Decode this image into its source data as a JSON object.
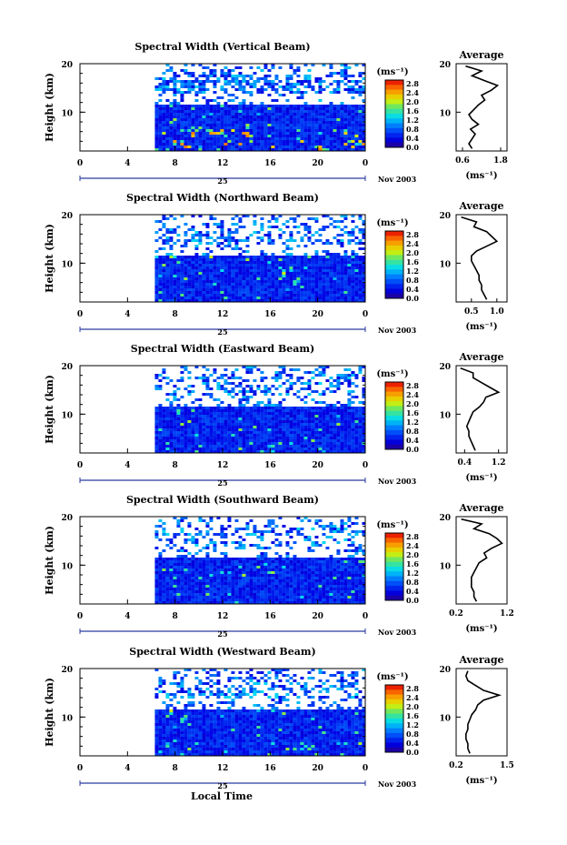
{
  "chart_data": {
    "type": "heatmap",
    "x_label": "Local Time",
    "y_label": "Height (km)",
    "date_label": "Nov 2003",
    "day_label": "25",
    "x_ticks": [
      "0",
      "4",
      "8",
      "12",
      "16",
      "20",
      "0"
    ],
    "y_ticks": [
      "20",
      "10"
    ],
    "xlim": [
      0,
      24
    ],
    "ylim": [
      2,
      20
    ],
    "data_start_hour": 6.3,
    "colorbar": {
      "unit": "(ms⁻¹)",
      "ticks": [
        "2.8",
        "2.4",
        "2.0",
        "1.6",
        "1.2",
        "0.8",
        "0.4",
        "0.0"
      ],
      "range": [
        0.0,
        2.8
      ]
    },
    "panels": [
      {
        "title": "Spectral Width (Vertical Beam)",
        "profile_title": "Average",
        "profile_xlabel": "(ms⁻¹)",
        "profile_xticks": [
          "0.6",
          "1.8"
        ],
        "profile_xlim": [
          0.4,
          2.0
        ],
        "profile": [
          [
            2.5,
            0.9
          ],
          [
            3.5,
            0.8
          ],
          [
            4.5,
            0.9
          ],
          [
            5.5,
            1.0
          ],
          [
            6.5,
            0.85
          ],
          [
            7.5,
            1.1
          ],
          [
            8.5,
            0.9
          ],
          [
            9.5,
            0.8
          ],
          [
            10.5,
            0.95
          ],
          [
            11.5,
            1.1
          ],
          [
            12.5,
            1.3
          ],
          [
            13.5,
            1.2
          ],
          [
            14.5,
            1.5
          ],
          [
            15.5,
            1.7
          ],
          [
            16.5,
            1.3
          ],
          [
            17.5,
            0.9
          ],
          [
            18.5,
            1.2
          ],
          [
            19.5,
            0.7
          ]
        ]
      },
      {
        "title": "Spectral Width (Northward Beam)",
        "profile_title": "Average",
        "profile_xlabel": "(ms⁻¹)",
        "profile_xticks": [
          "0.5",
          "1.0"
        ],
        "profile_xlim": [
          0.2,
          1.2
        ],
        "profile": [
          [
            2.5,
            0.8
          ],
          [
            3.5,
            0.75
          ],
          [
            4.5,
            0.7
          ],
          [
            5.5,
            0.7
          ],
          [
            6.5,
            0.65
          ],
          [
            7.5,
            0.65
          ],
          [
            8.5,
            0.6
          ],
          [
            9.5,
            0.55
          ],
          [
            10.5,
            0.5
          ],
          [
            11.5,
            0.5
          ],
          [
            12.5,
            0.6
          ],
          [
            13.5,
            0.8
          ],
          [
            14.5,
            1.0
          ],
          [
            15.5,
            0.9
          ],
          [
            16.5,
            0.8
          ],
          [
            17.5,
            0.55
          ],
          [
            18.5,
            0.6
          ],
          [
            19.5,
            0.3
          ]
        ]
      },
      {
        "title": "Spectral Width (Eastward Beam)",
        "profile_title": "Average",
        "profile_xlabel": "(ms⁻¹)",
        "profile_xticks": [
          "0.4",
          "1.2"
        ],
        "profile_xlim": [
          0.2,
          1.4
        ],
        "profile": [
          [
            2.5,
            0.65
          ],
          [
            3.5,
            0.6
          ],
          [
            4.5,
            0.55
          ],
          [
            5.5,
            0.5
          ],
          [
            6.5,
            0.5
          ],
          [
            7.5,
            0.45
          ],
          [
            8.5,
            0.5
          ],
          [
            9.5,
            0.55
          ],
          [
            10.5,
            0.6
          ],
          [
            11.5,
            0.75
          ],
          [
            12.5,
            0.85
          ],
          [
            13.5,
            0.9
          ],
          [
            14.5,
            1.2
          ],
          [
            15.5,
            1.0
          ],
          [
            16.5,
            0.8
          ],
          [
            17.5,
            0.6
          ],
          [
            18.5,
            0.6
          ],
          [
            19.5,
            0.3
          ]
        ]
      },
      {
        "title": "Spectral Width (Southward Beam)",
        "profile_title": "Average",
        "profile_xlabel": "(ms⁻¹)",
        "profile_xticks": [
          "0.2",
          "1.2"
        ],
        "profile_xlim": [
          0.2,
          1.2
        ],
        "profile": [
          [
            2.5,
            0.6
          ],
          [
            3.5,
            0.55
          ],
          [
            4.5,
            0.55
          ],
          [
            5.5,
            0.5
          ],
          [
            6.5,
            0.5
          ],
          [
            7.5,
            0.5
          ],
          [
            8.5,
            0.55
          ],
          [
            9.5,
            0.6
          ],
          [
            10.5,
            0.65
          ],
          [
            11.5,
            0.8
          ],
          [
            12.5,
            0.75
          ],
          [
            13.5,
            0.9
          ],
          [
            14.5,
            1.1
          ],
          [
            15.5,
            1.0
          ],
          [
            16.5,
            0.85
          ],
          [
            17.5,
            0.55
          ],
          [
            18.5,
            0.7
          ],
          [
            19.5,
            0.3
          ]
        ]
      },
      {
        "title": "Spectral Width (Westward Beam)",
        "profile_title": "Average",
        "profile_xlabel": "(ms⁻¹)",
        "profile_xticks": [
          "0.2",
          "1.5"
        ],
        "profile_xlim": [
          0.2,
          1.5
        ],
        "profile": [
          [
            2.5,
            0.55
          ],
          [
            3.5,
            0.5
          ],
          [
            4.5,
            0.5
          ],
          [
            5.5,
            0.45
          ],
          [
            6.5,
            0.45
          ],
          [
            7.5,
            0.5
          ],
          [
            8.5,
            0.5
          ],
          [
            9.5,
            0.55
          ],
          [
            10.5,
            0.6
          ],
          [
            11.5,
            0.7
          ],
          [
            12.5,
            0.75
          ],
          [
            13.5,
            0.9
          ],
          [
            14.5,
            1.3
          ],
          [
            15.5,
            0.9
          ],
          [
            16.5,
            0.7
          ],
          [
            17.5,
            0.5
          ],
          [
            18.5,
            0.45
          ],
          [
            19.5,
            0.5
          ]
        ]
      }
    ]
  }
}
